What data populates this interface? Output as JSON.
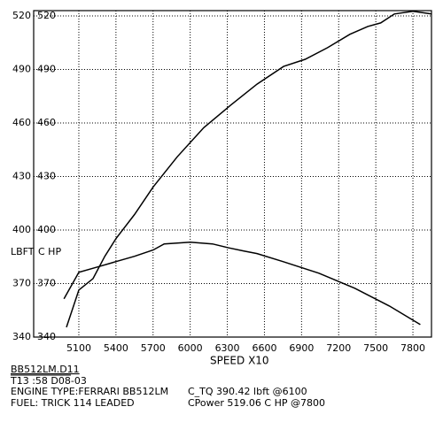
{
  "chart_data": {
    "type": "line",
    "x_label": "SPEED   X10",
    "ylabel": "LBFT",
    "y2label": "C HP",
    "xlim": [
      4735,
      7950
    ],
    "xticks": [
      5100,
      5400,
      5700,
      6000,
      6300,
      6600,
      6900,
      7200,
      7500,
      7800
    ],
    "ylim": [
      340,
      523
    ],
    "yticks": [
      340,
      370,
      400,
      430,
      460,
      490,
      520
    ],
    "y2lim": [
      340,
      523
    ],
    "y2ticks": [
      340,
      370,
      400,
      430,
      460,
      490,
      520
    ],
    "grid": true,
    "series": [
      {
        "name": "C_TQ",
        "color": "#000000",
        "x": [
          4980,
          5100,
          5250,
          5400,
          5550,
          5700,
          5790,
          6000,
          6180,
          6300,
          6430,
          6540,
          6750,
          7040,
          7330,
          7610,
          7860
        ],
        "values": [
          361.4,
          376.3,
          379.3,
          382.3,
          385.3,
          388.8,
          392.2,
          393.2,
          392.2,
          390.2,
          388.3,
          386.8,
          382.3,
          375.8,
          367.4,
          357.4,
          347.0
        ]
      },
      {
        "name": "CPower",
        "color": "#000000",
        "axis": "y2",
        "x": [
          5000,
          5100,
          5215,
          5310,
          5400,
          5550,
          5700,
          5895,
          6110,
          6325,
          6540,
          6755,
          6930,
          7110,
          7290,
          7435,
          7540,
          7650,
          7800,
          7950
        ],
        "values": [
          345.5,
          366.4,
          372.8,
          385.3,
          395.2,
          408.7,
          424.1,
          441.0,
          457.4,
          469.9,
          481.8,
          491.7,
          495.7,
          502.2,
          509.7,
          514.1,
          516.1,
          521.1,
          522.6,
          521.1
        ]
      }
    ],
    "annotations": [
      "BB512LM.D11",
      "T13 :58 D08-03",
      "ENGINE TYPE:FERRARI BB512LM",
      "FUEL:  TRICK  114   LEADED",
      "C_TQ  390.42  lbft  @6100",
      "CPower  519.06  C HP  @7800"
    ]
  }
}
